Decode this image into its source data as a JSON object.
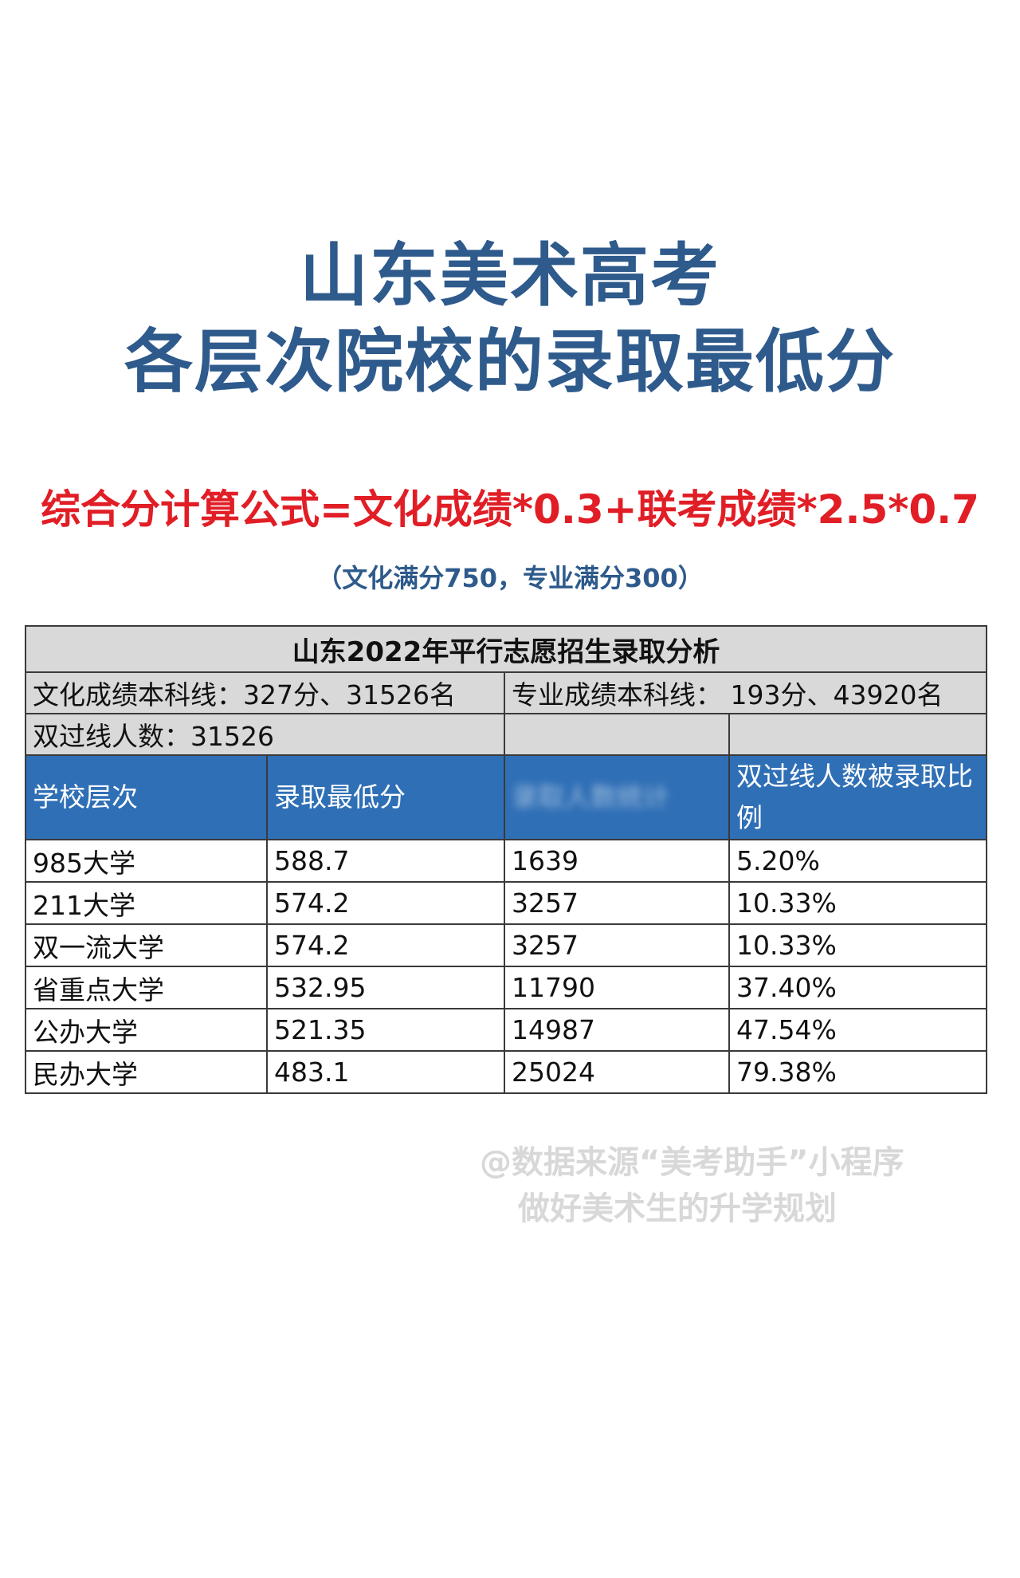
{
  "title": {
    "line1": "山东美术高考",
    "line2": "各层次院校的录取最低分"
  },
  "formula": "综合分计算公式=文化成绩*0.3+联考成绩*2.5*0.7",
  "note": "（文化满分750，专业满分300）",
  "table": {
    "caption": "山东2022年平行志愿招生录取分析",
    "culture_line": "文化成绩本科线：327分、31526名",
    "major_line": "专业成绩本科线： 193分、43920名",
    "double_pass": "双过线人数：31526",
    "headers": {
      "level": "学校层次",
      "min_score": "录取最低分",
      "blurred": "录取人数统计",
      "ratio": "双过线人数被录取比例"
    },
    "rows": [
      {
        "level": "985大学",
        "min_score": "588.7",
        "count": "1639",
        "ratio": "5.20%"
      },
      {
        "level": "211大学",
        "min_score": "574.2",
        "count": "3257",
        "ratio": "10.33%"
      },
      {
        "level": "双一流大学",
        "min_score": "574.2",
        "count": "3257",
        "ratio": "10.33%"
      },
      {
        "level": "省重点大学",
        "min_score": "532.95",
        "count": "11790",
        "ratio": "37.40%"
      },
      {
        "level": "公办大学",
        "min_score": "521.35",
        "count": "14987",
        "ratio": "47.54%"
      },
      {
        "level": "民办大学",
        "min_score": "483.1",
        "count": "25024",
        "ratio": "79.38%"
      }
    ]
  },
  "watermark": {
    "line1": "@数据来源“美考助手”小程序",
    "line2": "做好美术生的升学规划"
  }
}
